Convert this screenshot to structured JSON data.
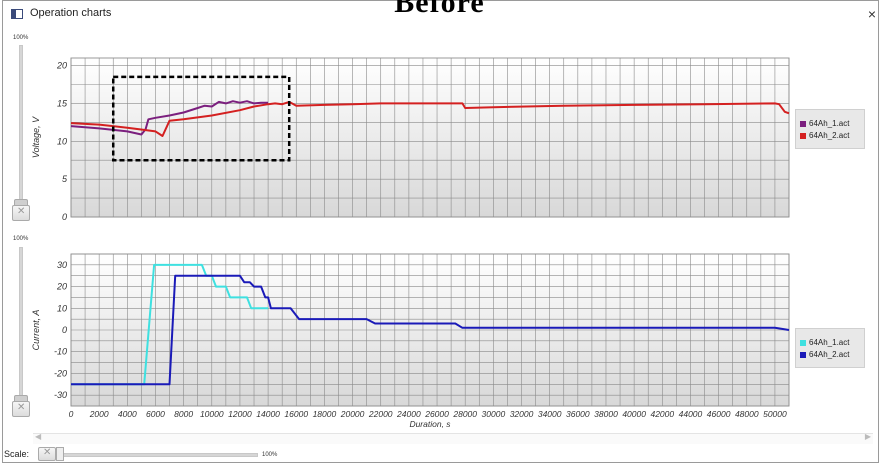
{
  "overlay_heading": "Before",
  "window": {
    "title": "Operation charts",
    "close_glyph": "×",
    "icon": "chart-window-icon"
  },
  "top_slider": {
    "label": "100%"
  },
  "bottom_slider": {
    "label": "100%"
  },
  "scale": {
    "label": "Scale:",
    "value": "100%"
  },
  "colors": {
    "voltage_1": "#7b1f7e",
    "voltage_2": "#d42020",
    "current_1": "#3ee0e0",
    "current_2": "#1a1ab8",
    "highlight_box": "#000000"
  },
  "chart_data": [
    {
      "type": "line",
      "ylabel": "Voltage, V",
      "xlabel": "",
      "xlim": [
        0,
        51000
      ],
      "ylim": [
        0,
        21
      ],
      "yticks": [
        0,
        5,
        10,
        15,
        20
      ],
      "yticks_labels": [
        "0",
        "5",
        "10",
        "15",
        "20"
      ],
      "grid": true,
      "legend_position": "right",
      "highlight_region": {
        "x": [
          3000,
          15500
        ],
        "y": [
          7.5,
          18.5
        ]
      },
      "series": [
        {
          "name": "64Ah_1.act",
          "color": "#7b1f7e",
          "x": [
            0,
            2000,
            4000,
            5000,
            5300,
            5500,
            6000,
            7000,
            8000,
            9000,
            9500,
            10000,
            10500,
            11000,
            11500,
            12000,
            12500,
            13000,
            13500,
            14000
          ],
          "y": [
            12.0,
            11.7,
            11.3,
            10.9,
            11.6,
            12.9,
            13.1,
            13.4,
            13.8,
            14.4,
            14.7,
            14.6,
            15.2,
            15.0,
            15.3,
            15.1,
            15.3,
            15.0,
            15.1,
            15.1
          ]
        },
        {
          "name": "64Ah_2.act",
          "color": "#d42020",
          "x": [
            0,
            2000,
            4000,
            6000,
            6500,
            7000,
            8000,
            10000,
            12000,
            13000,
            14000,
            14500,
            15000,
            15500,
            16000,
            18000,
            20000,
            22000,
            26000,
            27800,
            28000,
            30000,
            35000,
            40000,
            45000,
            50000,
            50300,
            50700,
            51000
          ],
          "y": [
            12.4,
            12.2,
            11.8,
            11.3,
            10.7,
            12.7,
            12.9,
            13.4,
            14.1,
            14.6,
            14.9,
            15.0,
            14.9,
            15.2,
            14.7,
            14.8,
            14.9,
            15.0,
            15.0,
            15.0,
            14.4,
            14.5,
            14.7,
            14.8,
            14.9,
            15.0,
            14.9,
            13.9,
            13.7
          ]
        }
      ],
      "legend": [
        "64Ah_1.act",
        "64Ah_2.act"
      ]
    },
    {
      "type": "line",
      "ylabel": "Current, A",
      "xlabel": "Duration, s",
      "xlim": [
        0,
        51000
      ],
      "ylim": [
        -35,
        35
      ],
      "yticks": [
        -30,
        -20,
        -10,
        0,
        10,
        20,
        30
      ],
      "yticks_labels": [
        "-30",
        "-20",
        "-10",
        "0",
        "10",
        "20",
        "30"
      ],
      "xticks": [
        0,
        2000,
        4000,
        6000,
        8000,
        10000,
        12000,
        14000,
        16000,
        18000,
        20000,
        22000,
        24000,
        26000,
        28000,
        30000,
        32000,
        34000,
        36000,
        38000,
        40000,
        42000,
        44000,
        46000,
        48000,
        50000
      ],
      "xticks_labels": [
        "0",
        "2000",
        "4000",
        "6000",
        "8000",
        "10000",
        "12000",
        "14000",
        "16000",
        "18000",
        "20000",
        "22000",
        "24000",
        "26000",
        "28000",
        "30000",
        "32000",
        "34000",
        "36000",
        "38000",
        "40000",
        "42000",
        "44000",
        "46000",
        "48000",
        "50000"
      ],
      "grid": true,
      "legend_position": "right",
      "series": [
        {
          "name": "64Ah_1.act",
          "color": "#3ee0e0",
          "x": [
            0,
            5200,
            5900,
            9300,
            9600,
            10000,
            10300,
            11000,
            11300,
            12500,
            12800,
            14000
          ],
          "y": [
            -25,
            -25,
            30,
            30,
            25,
            25,
            20,
            20,
            15,
            15,
            10,
            10
          ]
        },
        {
          "name": "64Ah_2.act",
          "color": "#1a1ab8",
          "x": [
            0,
            7000,
            7400,
            12000,
            12300,
            12700,
            13000,
            13500,
            13800,
            14000,
            14200,
            15600,
            16200,
            21000,
            21600,
            27300,
            27800,
            50000,
            50500,
            51000
          ],
          "y": [
            -25,
            -25,
            25,
            25,
            22,
            22,
            20,
            20,
            15,
            15,
            10,
            10,
            5,
            5,
            3,
            3,
            1,
            1,
            0.5,
            0
          ]
        }
      ],
      "legend": [
        "64Ah_1.act",
        "64Ah_2.act"
      ]
    }
  ]
}
